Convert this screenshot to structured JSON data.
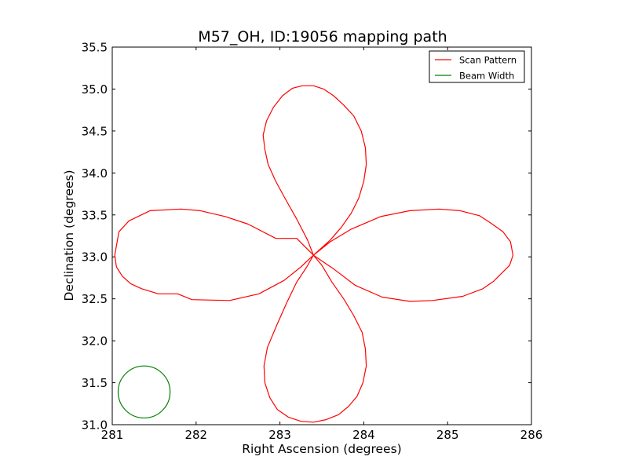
{
  "chart_data": {
    "type": "line",
    "title": "M57_OH, ID:19056 mapping path",
    "xlabel": "Right Ascension (degrees)",
    "ylabel": "Declination (degrees)",
    "xlim": [
      281,
      286
    ],
    "ylim": [
      31.0,
      35.5
    ],
    "xticks": [
      281,
      282,
      283,
      284,
      285,
      286
    ],
    "xtick_labels": [
      "281",
      "282",
      "283",
      "284",
      "285",
      "286"
    ],
    "yticks": [
      31.0,
      31.5,
      32.0,
      32.5,
      33.0,
      33.5,
      34.0,
      34.5,
      35.0,
      35.5
    ],
    "ytick_labels": [
      "31.0",
      "31.5",
      "32.0",
      "32.5",
      "33.0",
      "33.5",
      "34.0",
      "34.5",
      "35.0",
      "35.5"
    ],
    "grid": false,
    "legend_position": "top-right",
    "series": [
      {
        "name": "Scan Pattern",
        "color": "#ff0000",
        "x": [
          283.4,
          283.2,
          282.95,
          282.62,
          282.35,
          282.05,
          281.82,
          281.45,
          281.2,
          281.08,
          281.03,
          281.05,
          281.12,
          281.22,
          281.35,
          281.55,
          281.78,
          281.95,
          282.4,
          282.75,
          283.05,
          283.25,
          283.4,
          283.6,
          283.85,
          284.2,
          284.55,
          284.9,
          285.15,
          285.38,
          285.52,
          285.66,
          285.75,
          285.78,
          285.74,
          285.62,
          285.55,
          285.42,
          285.18,
          284.82,
          284.55,
          284.22,
          283.9,
          283.65,
          283.4,
          283.33,
          283.2,
          283.07,
          282.95,
          282.86,
          282.82,
          282.8,
          282.84,
          282.92,
          283.03,
          283.15,
          283.27,
          283.4,
          283.52,
          283.64,
          283.76,
          283.88,
          283.97,
          284.02,
          284.03,
          284.0,
          283.94,
          283.85,
          283.73,
          283.6,
          283.49,
          283.4,
          283.5,
          283.62,
          283.76,
          283.88,
          283.98,
          284.02,
          284.03,
          283.99,
          283.92,
          283.82,
          283.7,
          283.55,
          283.4,
          283.25,
          283.1,
          282.97,
          282.88,
          282.82,
          282.81,
          282.85,
          282.96,
          283.08,
          283.2,
          283.32,
          283.4
        ],
        "y": [
          33.02,
          33.22,
          33.22,
          33.39,
          33.48,
          33.55,
          33.57,
          33.55,
          33.43,
          33.3,
          33.02,
          32.88,
          32.77,
          32.68,
          32.62,
          32.56,
          32.56,
          32.49,
          32.48,
          32.56,
          32.72,
          32.88,
          33.02,
          33.18,
          33.33,
          33.48,
          33.55,
          33.57,
          33.55,
          33.49,
          33.4,
          33.3,
          33.18,
          33.02,
          32.9,
          32.78,
          32.71,
          32.62,
          32.53,
          32.48,
          32.47,
          32.52,
          32.66,
          32.85,
          33.02,
          33.2,
          33.45,
          33.68,
          33.9,
          34.1,
          34.28,
          34.45,
          34.62,
          34.78,
          34.92,
          35.01,
          35.04,
          35.04,
          35.0,
          34.92,
          34.81,
          34.68,
          34.5,
          34.3,
          34.1,
          33.9,
          33.7,
          33.52,
          33.35,
          33.2,
          33.1,
          33.02,
          32.9,
          32.7,
          32.5,
          32.3,
          32.1,
          31.9,
          31.7,
          31.5,
          31.34,
          31.22,
          31.12,
          31.06,
          31.03,
          31.04,
          31.09,
          31.18,
          31.32,
          31.5,
          31.7,
          31.92,
          32.18,
          32.45,
          32.7,
          32.88,
          33.02
        ]
      },
      {
        "name": "Beam Width",
        "color": "#008000",
        "shape": "circle",
        "center": [
          281.38,
          31.39
        ],
        "radius": 0.31
      }
    ]
  }
}
